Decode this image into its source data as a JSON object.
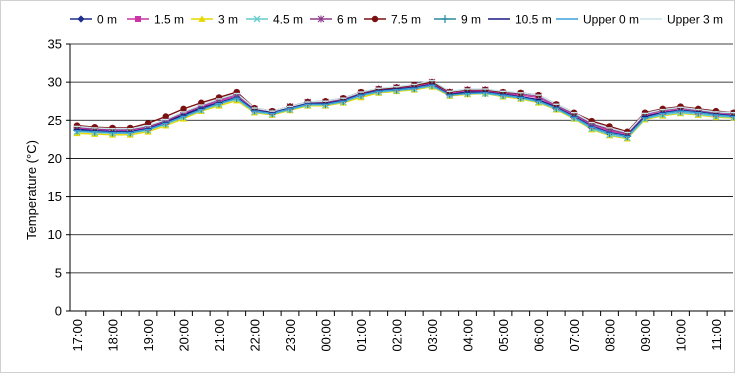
{
  "chart_data": {
    "type": "line",
    "title": "",
    "xlabel": "",
    "ylabel": "Temperature (°C)",
    "ylim": [
      0,
      35
    ],
    "yticks": [
      0,
      5,
      10,
      15,
      20,
      25,
      30,
      35
    ],
    "grid": "horizontal",
    "legend_position": "top",
    "x_tick_labels": [
      "17:00",
      "18:00",
      "19:00",
      "20:00",
      "21:00",
      "22:00",
      "23:00",
      "00:00",
      "01:00",
      "02:00",
      "03:00",
      "04:00",
      "05:00",
      "06:00",
      "07:00",
      "08:00",
      "09:00",
      "10:00",
      "11:00"
    ],
    "x": [
      "17:00",
      "17:30",
      "18:00",
      "18:30",
      "19:00",
      "19:30",
      "20:00",
      "20:30",
      "21:00",
      "21:30",
      "22:00",
      "22:30",
      "23:00",
      "23:30",
      "00:00",
      "00:30",
      "01:00",
      "01:30",
      "02:00",
      "02:30",
      "03:00",
      "03:30",
      "04:00",
      "04:30",
      "05:00",
      "05:30",
      "06:00",
      "06:30",
      "07:00",
      "07:30",
      "08:00",
      "08:30",
      "09:00",
      "09:30",
      "10:00",
      "10:30",
      "11:00",
      "11:30"
    ],
    "series": [
      {
        "name": "0 m",
        "color": "#1f2f8c",
        "marker": "diamond",
        "values": [
          23.9,
          23.7,
          23.6,
          23.6,
          23.9,
          24.6,
          25.6,
          26.5,
          27.3,
          28.0,
          26.2,
          25.9,
          26.5,
          27.1,
          27.1,
          27.5,
          28.3,
          28.8,
          29.0,
          29.2,
          29.6,
          28.3,
          28.5,
          28.6,
          28.3,
          27.9,
          27.5,
          26.5,
          25.4,
          24.0,
          23.3,
          22.9,
          25.4,
          26.0,
          26.3,
          26.0,
          25.7,
          25.6
        ]
      },
      {
        "name": "1.5 m",
        "color": "#cc33a6",
        "marker": "square",
        "values": [
          24.0,
          23.8,
          23.7,
          23.7,
          24.0,
          24.8,
          25.8,
          26.7,
          27.5,
          28.2,
          26.4,
          26.1,
          26.7,
          27.3,
          27.3,
          27.7,
          28.5,
          29.0,
          29.2,
          29.4,
          29.8,
          28.5,
          28.8,
          28.9,
          28.5,
          28.3,
          28.0,
          26.8,
          25.6,
          24.3,
          23.6,
          23.2,
          25.6,
          26.1,
          26.4,
          26.1,
          25.8,
          25.7
        ]
      },
      {
        "name": "3 m",
        "color": "#e6d800",
        "marker": "triangle",
        "values": [
          23.3,
          23.2,
          23.1,
          23.1,
          23.5,
          24.3,
          25.2,
          26.2,
          26.9,
          27.6,
          26.0,
          25.7,
          26.3,
          26.9,
          26.9,
          27.3,
          28.0,
          28.6,
          28.8,
          29.0,
          29.4,
          28.2,
          28.4,
          28.5,
          28.1,
          27.8,
          27.3,
          26.4,
          25.2,
          23.8,
          23.0,
          22.6,
          25.1,
          25.6,
          25.9,
          25.7,
          25.4,
          25.3
        ]
      },
      {
        "name": "4.5 m",
        "color": "#66cccc",
        "marker": "x",
        "values": [
          23.5,
          23.4,
          23.3,
          23.3,
          23.7,
          24.5,
          25.4,
          26.3,
          27.1,
          27.8,
          26.1,
          25.8,
          26.4,
          27.0,
          27.0,
          27.4,
          28.2,
          28.7,
          28.9,
          29.1,
          29.5,
          28.3,
          28.5,
          28.5,
          28.2,
          27.9,
          27.4,
          26.5,
          25.3,
          23.9,
          23.1,
          22.7,
          25.2,
          25.7,
          26.0,
          25.8,
          25.5,
          25.4
        ]
      },
      {
        "name": "6 m",
        "color": "#8a3a8a",
        "marker": "asterisk",
        "values": [
          24.1,
          23.9,
          23.8,
          23.8,
          24.2,
          24.9,
          26.0,
          26.9,
          27.7,
          28.4,
          26.5,
          26.1,
          26.8,
          27.4,
          27.4,
          27.8,
          28.6,
          29.1,
          29.3,
          29.6,
          30.0,
          28.7,
          29.0,
          29.0,
          28.6,
          28.5,
          28.2,
          27.0,
          25.8,
          24.5,
          23.8,
          23.3,
          25.8,
          26.3,
          26.6,
          26.3,
          26.0,
          25.9
        ]
      },
      {
        "name": "7.5 m",
        "color": "#7a1010",
        "marker": "circle",
        "values": [
          24.3,
          24.1,
          24.0,
          24.0,
          24.6,
          25.5,
          26.5,
          27.3,
          28.0,
          28.7,
          26.6,
          26.2,
          26.8,
          27.4,
          27.5,
          27.9,
          28.7,
          29.1,
          29.3,
          29.6,
          30.0,
          28.7,
          29.0,
          29.0,
          28.7,
          28.6,
          28.3,
          27.1,
          26.0,
          24.9,
          24.2,
          23.5,
          26.0,
          26.5,
          26.8,
          26.5,
          26.2,
          26.0
        ]
      },
      {
        "name": "9 m",
        "color": "#2a8aa0",
        "marker": "plus",
        "values": [
          23.7,
          23.5,
          23.4,
          23.4,
          23.8,
          24.6,
          25.6,
          26.5,
          27.2,
          27.9,
          26.3,
          25.9,
          26.5,
          27.1,
          27.1,
          27.5,
          28.3,
          28.8,
          29.0,
          29.2,
          29.6,
          28.4,
          28.6,
          28.6,
          28.3,
          28.0,
          27.6,
          26.6,
          25.4,
          24.1,
          23.3,
          22.9,
          25.4,
          25.9,
          26.2,
          26.0,
          25.7,
          25.5
        ]
      },
      {
        "name": "10.5 m",
        "color": "#1a1a80",
        "marker": "none",
        "values": [
          23.8,
          23.6,
          23.5,
          23.5,
          23.9,
          24.7,
          25.7,
          26.6,
          27.3,
          28.0,
          26.3,
          26.0,
          26.6,
          27.2,
          27.2,
          27.6,
          28.4,
          28.9,
          29.1,
          29.3,
          29.7,
          28.4,
          28.7,
          28.7,
          28.4,
          28.1,
          27.7,
          26.7,
          25.5,
          24.2,
          23.4,
          23.0,
          25.5,
          26.0,
          26.3,
          26.1,
          25.8,
          25.6
        ]
      },
      {
        "name": "Upper 0 m",
        "color": "#3aa0d8",
        "marker": "none",
        "values": [
          23.6,
          23.5,
          23.4,
          23.4,
          23.8,
          24.6,
          25.5,
          26.4,
          27.2,
          27.9,
          26.2,
          25.9,
          26.5,
          27.1,
          27.1,
          27.5,
          28.3,
          28.8,
          29.0,
          29.2,
          29.6,
          28.3,
          28.5,
          28.6,
          28.3,
          28.0,
          27.5,
          26.6,
          25.4,
          24.1,
          23.3,
          22.9,
          25.3,
          25.9,
          26.2,
          26.0,
          25.7,
          25.5
        ]
      },
      {
        "name": "Upper 3 m",
        "color": "#c8e4ea",
        "marker": "none",
        "values": [
          24.2,
          24.0,
          23.9,
          23.9,
          24.3,
          25.1,
          26.1,
          27.0,
          27.8,
          28.5,
          26.6,
          26.2,
          26.8,
          27.4,
          27.5,
          27.9,
          28.7,
          29.2,
          29.4,
          29.7,
          30.2,
          28.8,
          29.1,
          29.1,
          28.8,
          28.6,
          28.3,
          27.1,
          26.0,
          24.7,
          24.0,
          23.4,
          25.9,
          26.4,
          26.7,
          26.4,
          26.1,
          26.0
        ]
      }
    ]
  }
}
